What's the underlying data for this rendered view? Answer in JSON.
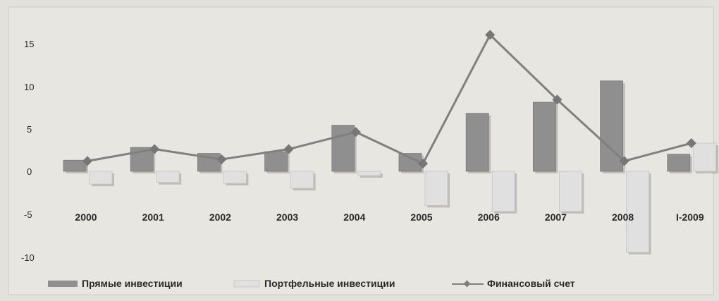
{
  "chart_data": {
    "type": "bar",
    "categories": [
      "2000",
      "2001",
      "2002",
      "2003",
      "2004",
      "2005",
      "2006",
      "2007",
      "2008",
      "I-2009"
    ],
    "series": [
      {
        "name": "Прямые инвестиции",
        "kind": "bar",
        "color": "#8f8f8f",
        "values": [
          1.3,
          2.8,
          2.1,
          2.3,
          5.4,
          2.1,
          6.8,
          8.1,
          10.6,
          2.0
        ]
      },
      {
        "name": "Портфельные инвестиции",
        "kind": "bar",
        "color": "#e0e0e0",
        "values": [
          -1.5,
          -1.3,
          -1.4,
          -2.0,
          -0.5,
          -4.0,
          -4.7,
          -4.7,
          -9.5,
          3.3
        ]
      },
      {
        "name": "Финансовый счет",
        "kind": "line",
        "color": "#808080",
        "values": [
          1.2,
          2.6,
          1.4,
          2.6,
          4.6,
          0.9,
          16.0,
          8.4,
          1.2,
          3.3
        ]
      }
    ],
    "yticks": [
      "15",
      "10",
      "5",
      "0",
      "-5",
      "-10"
    ],
    "ylim": [
      -12,
      17
    ],
    "grid": false,
    "legend_position": "bottom"
  }
}
